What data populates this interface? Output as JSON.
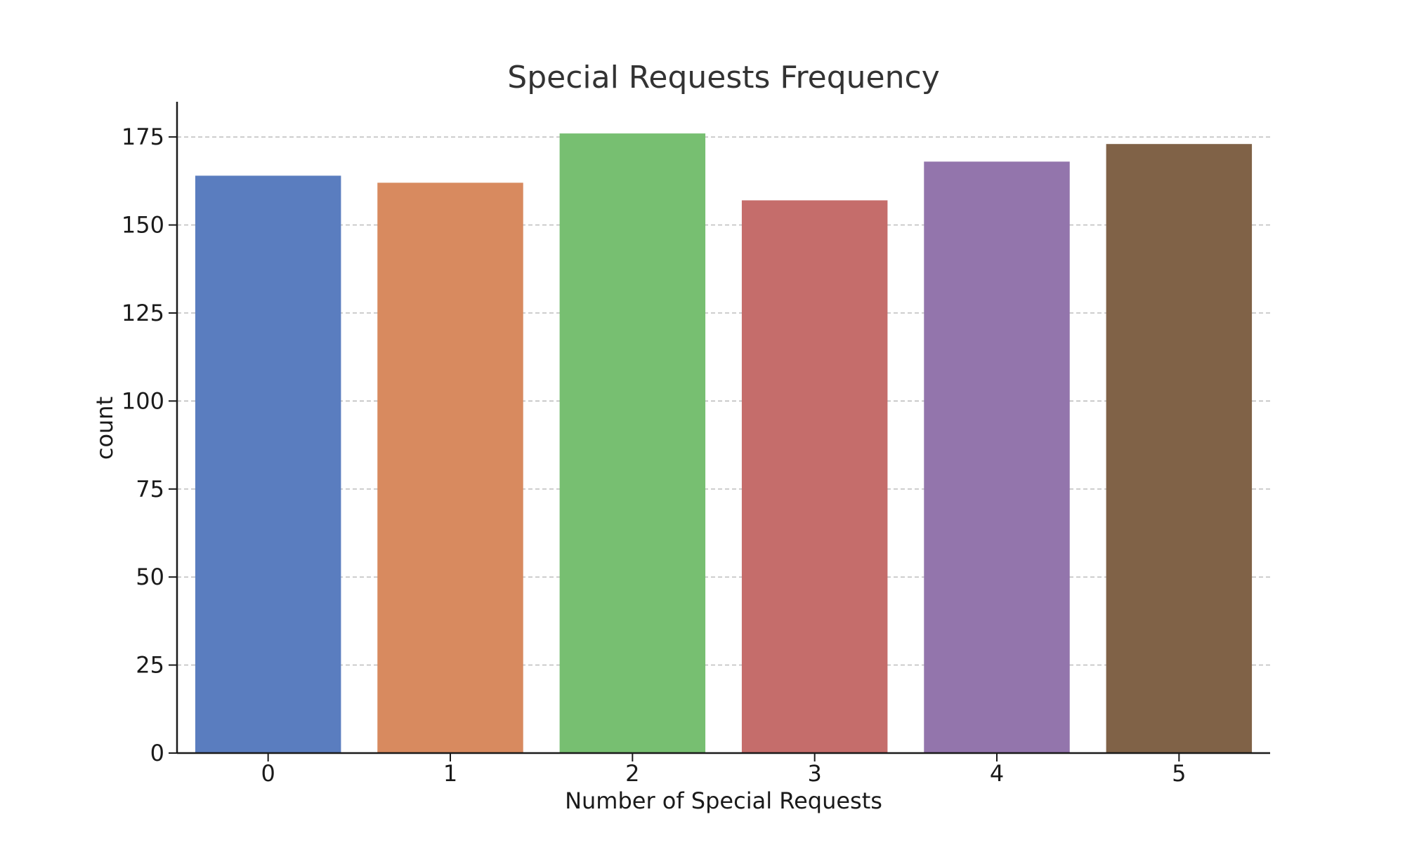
{
  "chart_data": {
    "type": "bar",
    "title": "Special Requests Frequency",
    "xlabel": "Number of Special Requests",
    "ylabel": "count",
    "categories": [
      "0",
      "1",
      "2",
      "3",
      "4",
      "5"
    ],
    "values": [
      164,
      162,
      176,
      157,
      168,
      173
    ],
    "colors": [
      "#5a7dbf",
      "#d88a5f",
      "#77bf71",
      "#c56d6b",
      "#9375ac",
      "#806247"
    ],
    "ylim": [
      0,
      185
    ],
    "yticks": [
      0,
      25,
      50,
      75,
      100,
      125,
      150,
      175
    ],
    "grid": true,
    "grid_axis": "y",
    "grid_style": "dashed",
    "legend": false
  }
}
